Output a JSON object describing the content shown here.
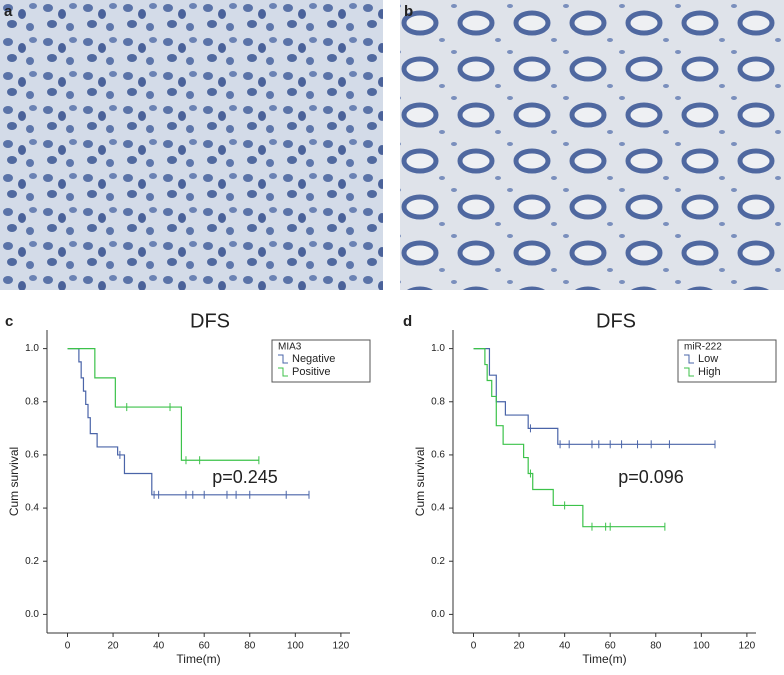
{
  "panel_labels": [
    "a",
    "b",
    "c",
    "d"
  ],
  "chart_data": [
    {
      "type": "line",
      "title": "DFS",
      "xlabel": "Time(m)",
      "ylabel": "Cum survival",
      "xlim": [
        -9,
        124
      ],
      "ylim": [
        -0.07,
        1.07
      ],
      "xticks": [
        0,
        20,
        40,
        60,
        80,
        100,
        120
      ],
      "yticks": [
        {
          "value": 0,
          "label": "0.0"
        },
        0.2,
        0.4,
        0.6,
        0.8,
        {
          "value": 1,
          "label": "1.0"
        }
      ],
      "legend_title": "MIA3",
      "legend": "upper right",
      "annotation": "p=0.245",
      "series": [
        {
          "name": "Negative",
          "color": "#4a64a8",
          "x": [
            0,
            5,
            6,
            7,
            8,
            9,
            10,
            13,
            22,
            25,
            37,
            106
          ],
          "values": [
            1.0,
            0.95,
            0.89,
            0.84,
            0.79,
            0.74,
            0.68,
            0.63,
            0.6,
            0.53,
            0.45,
            0.45
          ],
          "censored": {
            "x": [
              23,
              38,
              40,
              52,
              55,
              60,
              70,
              74,
              80,
              96,
              106
            ],
            "values": [
              0.6,
              0.45,
              0.45,
              0.45,
              0.45,
              0.45,
              0.45,
              0.45,
              0.45,
              0.45,
              0.45
            ]
          }
        },
        {
          "name": "Positive",
          "color": "#3cc24a",
          "x": [
            0,
            12,
            21,
            50,
            84
          ],
          "values": [
            1.0,
            0.89,
            0.78,
            0.58,
            0.58
          ],
          "censored": {
            "x": [
              26,
              45,
              52,
              58,
              84
            ],
            "values": [
              0.78,
              0.78,
              0.58,
              0.58,
              0.58
            ]
          }
        }
      ]
    },
    {
      "type": "line",
      "title": "DFS",
      "xlabel": "Time(m)",
      "ylabel": "Cum survival",
      "xlim": [
        -9,
        124
      ],
      "ylim": [
        -0.07,
        1.07
      ],
      "xticks": [
        0,
        20,
        40,
        60,
        80,
        100,
        120
      ],
      "yticks": [
        {
          "value": 0,
          "label": "0.0"
        },
        0.2,
        0.4,
        0.6,
        0.8,
        {
          "value": 1,
          "label": "1.0"
        }
      ],
      "legend_title": "miR-222",
      "legend": "upper right",
      "annotation": "p=0.096",
      "series": [
        {
          "name": "Low",
          "color": "#4a64a8",
          "x": [
            0,
            7,
            10,
            14,
            24,
            37,
            106
          ],
          "values": [
            1.0,
            0.9,
            0.8,
            0.75,
            0.7,
            0.64,
            0.64
          ],
          "censored": {
            "x": [
              25,
              38,
              42,
              52,
              55,
              60,
              65,
              72,
              78,
              86,
              106
            ],
            "values": [
              0.7,
              0.64,
              0.64,
              0.64,
              0.64,
              0.64,
              0.64,
              0.64,
              0.64,
              0.64,
              0.64
            ]
          }
        },
        {
          "name": "High",
          "color": "#3cc24a",
          "x": [
            0,
            5,
            6,
            8,
            10,
            13,
            22,
            24,
            26,
            35,
            48,
            84
          ],
          "values": [
            1.0,
            0.94,
            0.88,
            0.82,
            0.71,
            0.64,
            0.59,
            0.53,
            0.47,
            0.41,
            0.33,
            0.33
          ],
          "censored": {
            "x": [
              25,
              40,
              52,
              58,
              60,
              84
            ],
            "values": [
              0.53,
              0.41,
              0.33,
              0.33,
              0.33,
              0.33
            ]
          }
        }
      ]
    }
  ]
}
